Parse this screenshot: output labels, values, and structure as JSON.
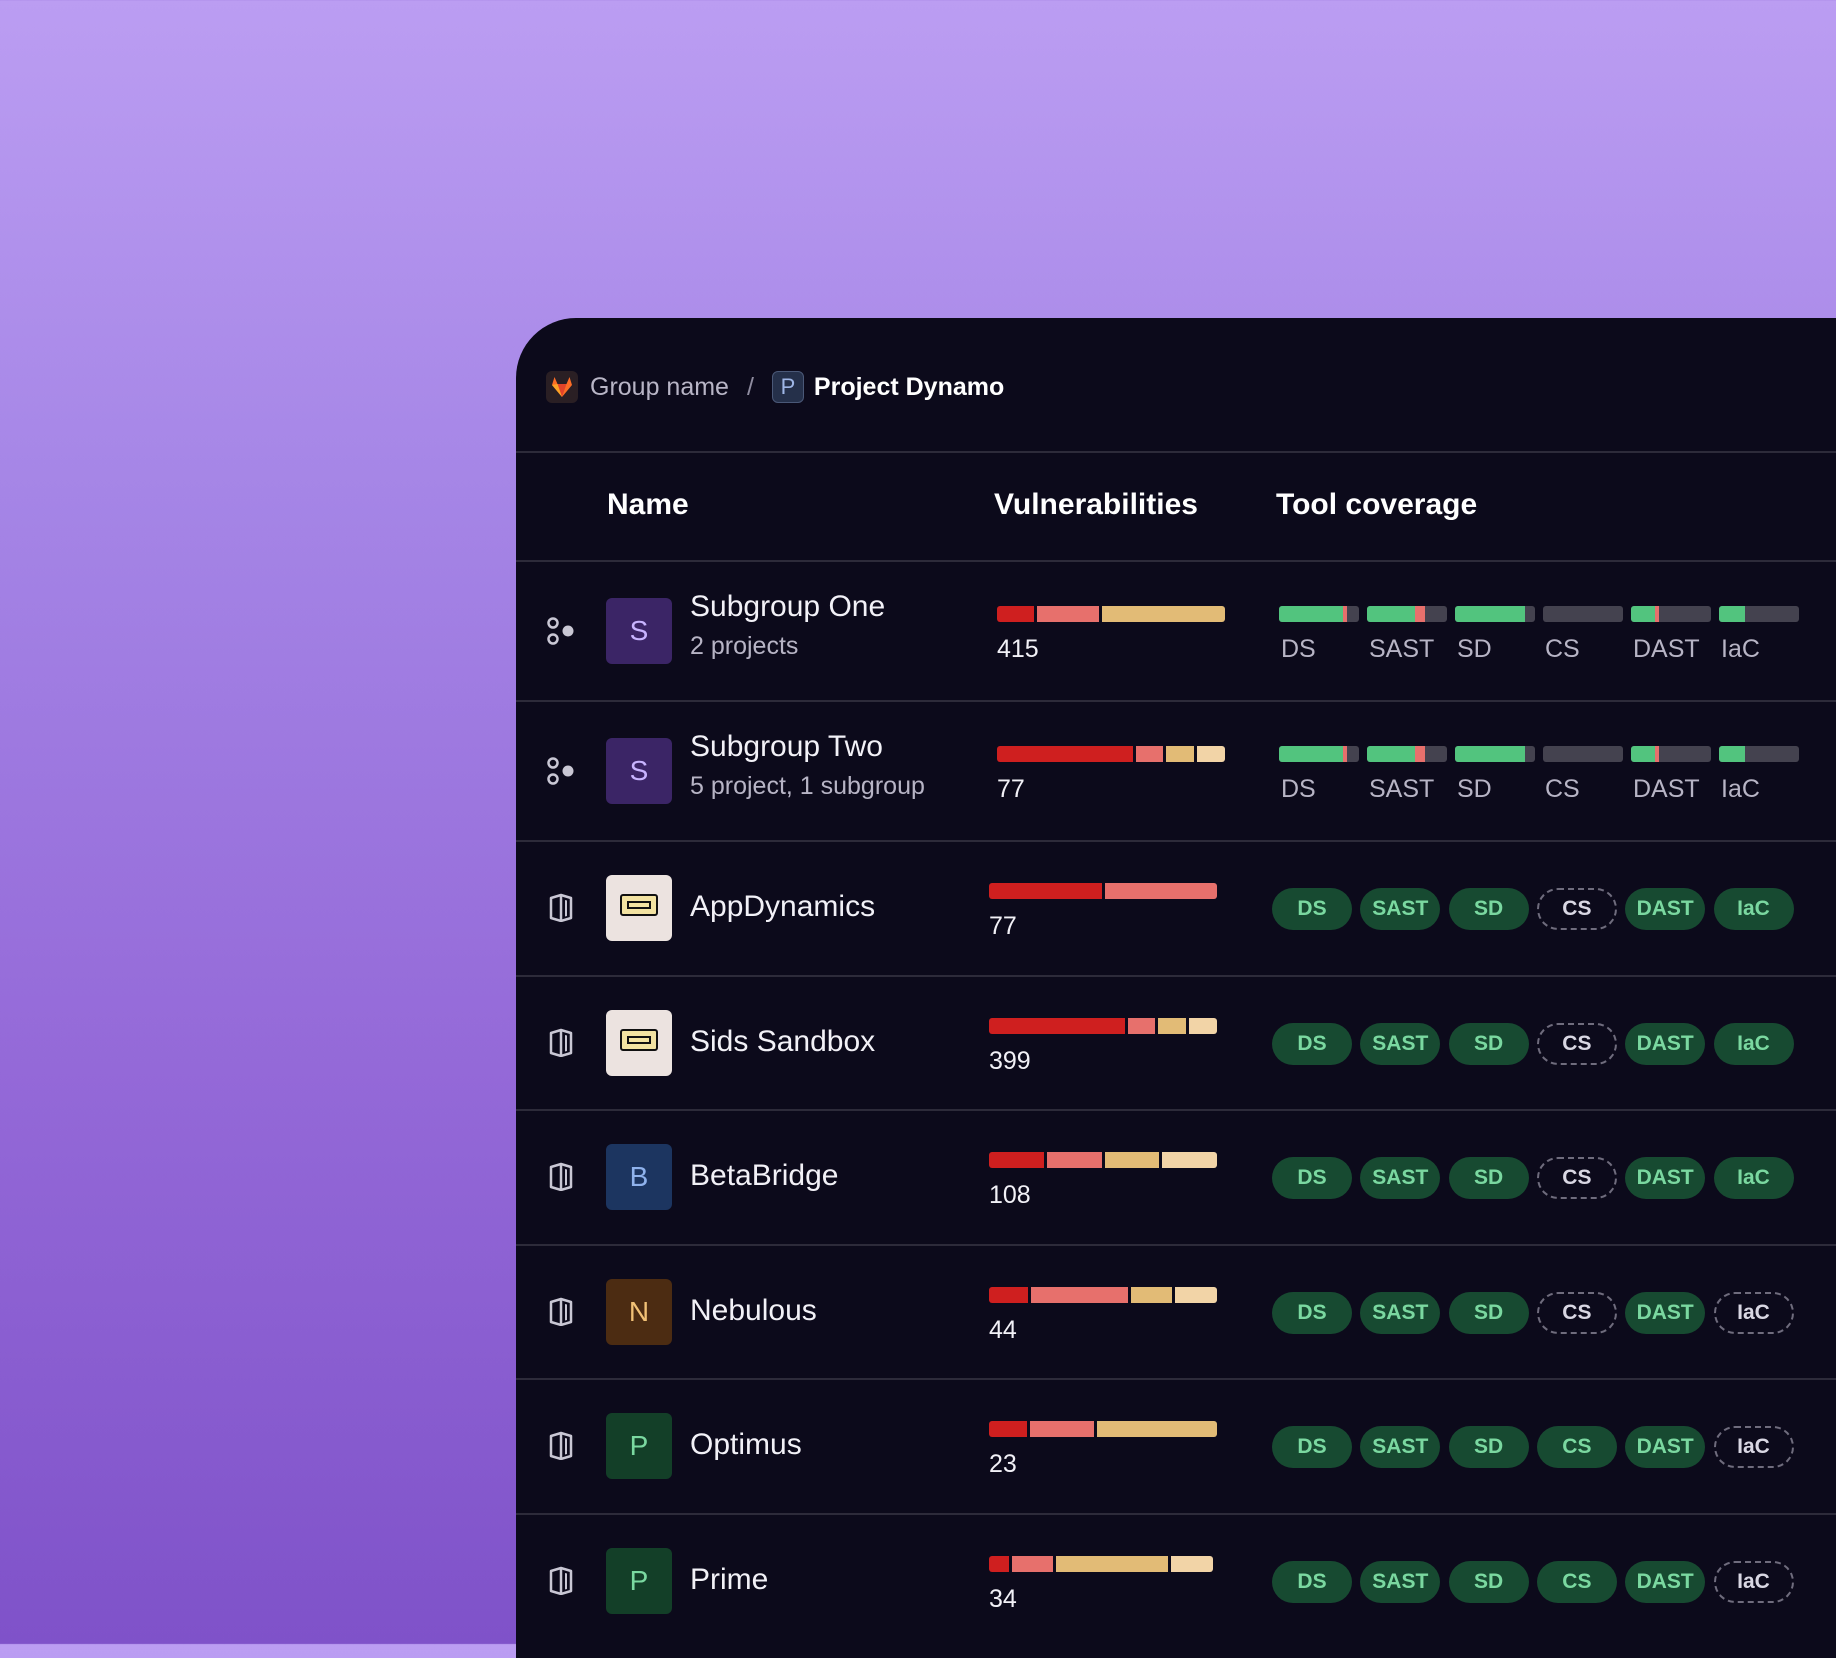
{
  "breadcrumb": {
    "group": "Group name",
    "separator": "/",
    "project_initial": "P",
    "project": "Project Dynamo"
  },
  "columns": {
    "name": "Name",
    "vulnerabilities": "Vulnerabilities",
    "tool_coverage": "Tool coverage"
  },
  "tools": [
    "DS",
    "SAST",
    "SD",
    "CS",
    "DAST",
    "IaC"
  ],
  "colors": {
    "critical": "#cf1f1f",
    "high": "#e7706c",
    "medium": "#e2bb76",
    "low": "#f2d4a7",
    "covered": "#52c47e",
    "uncovered": "#44424f"
  },
  "subgroups": [
    {
      "name": "Subgroup One",
      "meta": "2 projects",
      "initial": "S",
      "avatar_color": "#3b2566",
      "avatar_text": "#c8b4ff",
      "vuln_total": "415",
      "vuln_segments": [
        {
          "severity": "critical",
          "share": 0.165
        },
        {
          "severity": "high",
          "share": 0.28
        },
        {
          "severity": "medium",
          "share": 0.555
        }
      ],
      "coverage": [
        {
          "tool": "DS",
          "segments": [
            {
              "color": "#52c47e",
              "share": 0.8
            },
            {
              "color": "#e7706c",
              "share": 0.05
            }
          ]
        },
        {
          "tool": "SAST",
          "segments": [
            {
              "color": "#52c47e",
              "share": 0.6
            },
            {
              "color": "#e7706c",
              "share": 0.12
            }
          ]
        },
        {
          "tool": "SD",
          "segments": [
            {
              "color": "#52c47e",
              "share": 0.87
            }
          ]
        },
        {
          "tool": "CS",
          "segments": []
        },
        {
          "tool": "DAST",
          "segments": [
            {
              "color": "#52c47e",
              "share": 0.3
            },
            {
              "color": "#e7706c",
              "share": 0.05
            }
          ]
        },
        {
          "tool": "IaC",
          "segments": [
            {
              "color": "#52c47e",
              "share": 0.32
            }
          ]
        }
      ]
    },
    {
      "name": "Subgroup Two",
      "meta": "5 project, 1 subgroup",
      "initial": "S",
      "avatar_color": "#3b2566",
      "avatar_text": "#c8b4ff",
      "vuln_total": "77",
      "vuln_segments": [
        {
          "severity": "critical",
          "share": 0.62
        },
        {
          "severity": "high",
          "share": 0.125
        },
        {
          "severity": "medium",
          "share": 0.125
        },
        {
          "severity": "low",
          "share": 0.13
        }
      ],
      "coverage": [
        {
          "tool": "DS",
          "segments": [
            {
              "color": "#52c47e",
              "share": 0.8
            },
            {
              "color": "#e7706c",
              "share": 0.05
            }
          ]
        },
        {
          "tool": "SAST",
          "segments": [
            {
              "color": "#52c47e",
              "share": 0.6
            },
            {
              "color": "#e7706c",
              "share": 0.12
            }
          ]
        },
        {
          "tool": "SD",
          "segments": [
            {
              "color": "#52c47e",
              "share": 0.87
            }
          ]
        },
        {
          "tool": "CS",
          "segments": []
        },
        {
          "tool": "DAST",
          "segments": [
            {
              "color": "#52c47e",
              "share": 0.3
            },
            {
              "color": "#e7706c",
              "share": 0.05
            }
          ]
        },
        {
          "tool": "IaC",
          "segments": [
            {
              "color": "#52c47e",
              "share": 0.32
            }
          ]
        }
      ]
    }
  ],
  "projects": [
    {
      "name": "AppDynamics",
      "avatar_type": "image",
      "initial": "",
      "avatar_color": "#ece3e0",
      "avatar_text": "#000000",
      "vuln_total": "77",
      "vuln_segments": [
        {
          "severity": "critical",
          "share": 0.5
        },
        {
          "severity": "high",
          "share": 0.5
        }
      ],
      "tools_on": [
        true,
        true,
        true,
        false,
        true,
        true
      ]
    },
    {
      "name": "Sids Sandbox",
      "avatar_type": "image",
      "initial": "",
      "avatar_color": "#ece3e0",
      "avatar_text": "#000000",
      "vuln_total": "399",
      "vuln_segments": [
        {
          "severity": "critical",
          "share": 0.62
        },
        {
          "severity": "high",
          "share": 0.125
        },
        {
          "severity": "medium",
          "share": 0.125
        },
        {
          "severity": "low",
          "share": 0.13
        }
      ],
      "tools_on": [
        true,
        true,
        true,
        false,
        true,
        true
      ]
    },
    {
      "name": "BetaBridge",
      "avatar_type": "letter",
      "initial": "B",
      "avatar_color": "#1c3560",
      "avatar_text": "#8fb2ec",
      "vuln_total": "108",
      "vuln_segments": [
        {
          "severity": "critical",
          "share": 0.25
        },
        {
          "severity": "high",
          "share": 0.25
        },
        {
          "severity": "medium",
          "share": 0.25
        },
        {
          "severity": "low",
          "share": 0.25
        }
      ],
      "tools_on": [
        true,
        true,
        true,
        false,
        true,
        true
      ]
    },
    {
      "name": "Nebulous",
      "avatar_type": "letter",
      "initial": "N",
      "avatar_color": "#4c2c12",
      "avatar_text": "#f1c176",
      "vuln_total": "44",
      "vuln_segments": [
        {
          "severity": "critical",
          "share": 0.18
        },
        {
          "severity": "high",
          "share": 0.44
        },
        {
          "severity": "medium",
          "share": 0.19
        },
        {
          "severity": "low",
          "share": 0.19
        }
      ],
      "tools_on": [
        true,
        true,
        true,
        false,
        true,
        false
      ]
    },
    {
      "name": "Optimus",
      "avatar_type": "letter",
      "initial": "P",
      "avatar_color": "#133f28",
      "avatar_text": "#7ad8a0",
      "vuln_total": "23",
      "vuln_segments": [
        {
          "severity": "critical",
          "share": 0.17
        },
        {
          "severity": "high",
          "share": 0.29
        },
        {
          "severity": "medium",
          "share": 0.54
        }
      ],
      "tools_on": [
        true,
        true,
        true,
        true,
        true,
        false
      ]
    },
    {
      "name": "Prime",
      "avatar_type": "letter",
      "initial": "P",
      "avatar_color": "#133f28",
      "avatar_text": "#7ad8a0",
      "vuln_total": "34",
      "vuln_segments": [
        {
          "severity": "critical",
          "share": 0.09
        },
        {
          "severity": "high",
          "share": 0.19
        },
        {
          "severity": "medium",
          "share": 0.51
        },
        {
          "severity": "low",
          "share": 0.19
        }
      ],
      "tools_on": [
        true,
        true,
        true,
        true,
        true,
        false
      ]
    }
  ]
}
